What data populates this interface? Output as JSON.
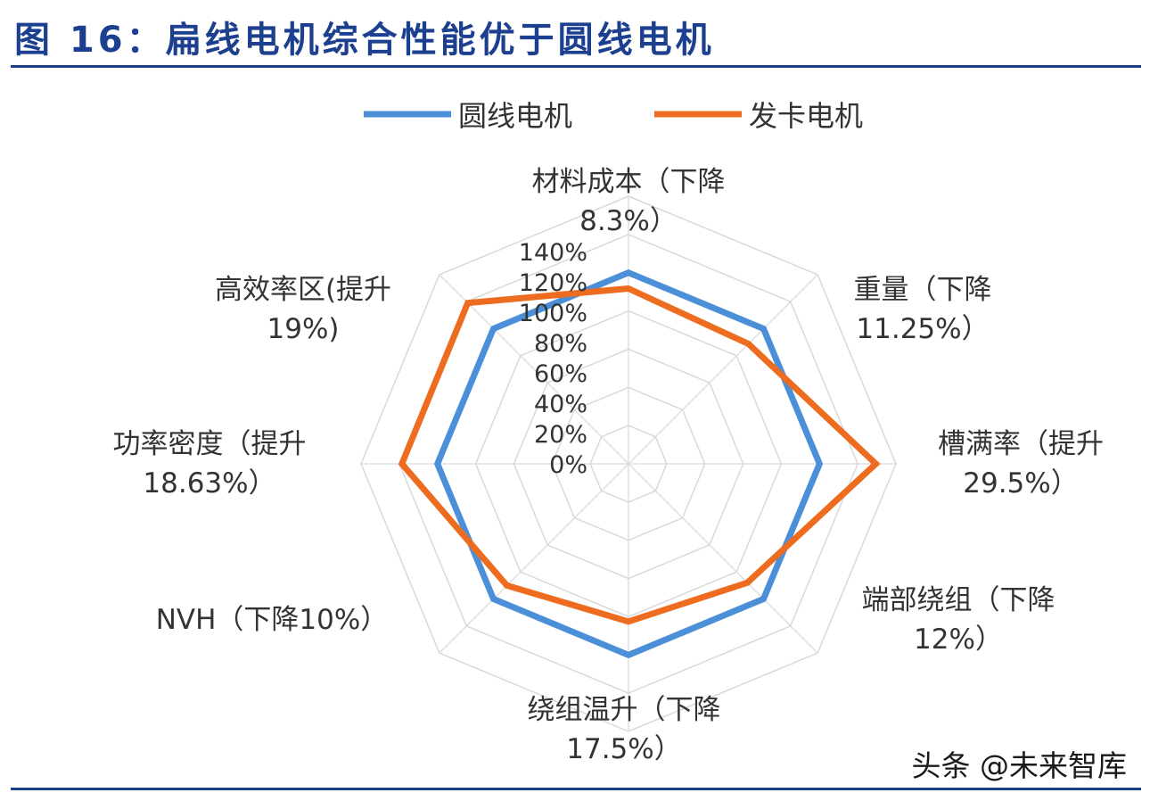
{
  "figure_title": "图 16：扁线电机综合性能优于圆线电机",
  "watermark": "头条 @未来智库",
  "colors": {
    "title": "#1c3f8f",
    "rule": "#1c3f8f",
    "grid": "#d9d9d9",
    "text": "#333333"
  },
  "chart_data": {
    "type": "radar",
    "title": "",
    "legend_position": "top",
    "grid": true,
    "radial_range": [
      0,
      140
    ],
    "radial_ticks": [
      "0%",
      "20%",
      "40%",
      "60%",
      "80%",
      "100%",
      "120%",
      "140%"
    ],
    "axes": [
      {
        "line1": "材料成本（下降",
        "line2": "8.3%）"
      },
      {
        "line1": "重量（下降",
        "line2": "11.25%）"
      },
      {
        "line1": "槽满率（提升",
        "line2": "29.5%）"
      },
      {
        "line1": "端部绕组（下降",
        "line2": "12%）"
      },
      {
        "line1": "绕组温升（下降",
        "line2": "17.5%）"
      },
      {
        "line1": "NVH（下降10%）",
        "line2": ""
      },
      {
        "line1": "功率密度（提升",
        "line2": "18.63%）"
      },
      {
        "line1": "高效率区(提升",
        "line2": "19%)"
      }
    ],
    "series": [
      {
        "name": "圆线电机",
        "color": "#4a8fd8",
        "values": [
          100,
          100,
          100,
          100,
          100,
          100,
          100,
          100
        ]
      },
      {
        "name": "发卡电机",
        "color": "#ee6c1f",
        "values": [
          91.7,
          88.75,
          129.5,
          88,
          82.5,
          90,
          118.63,
          119
        ]
      }
    ]
  }
}
